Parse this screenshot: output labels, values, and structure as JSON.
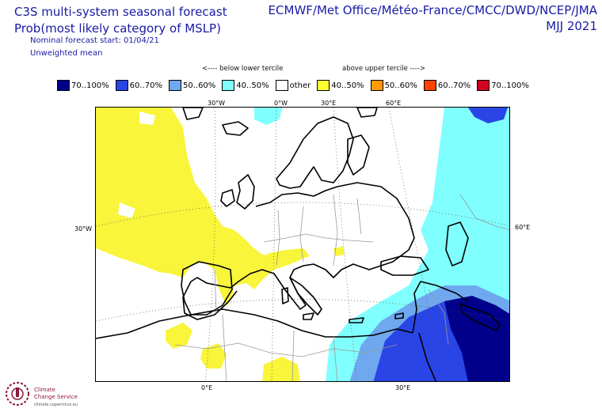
{
  "header": {
    "title_line1": "C3S multi-system seasonal forecast",
    "title_line2": "Prob(most likely category of MSLP)",
    "nominal_start": "Nominal forecast start: 01/04/21",
    "mean_type": "Unweighted mean",
    "centres": "ECMWF/Met Office/Météo-France/CMCC/DWD/NCEP/JMA",
    "season": "MJJ 2021"
  },
  "legend": {
    "below_label": "<---- below lower tercile",
    "above_label": "above upper tercile ---->",
    "items": [
      {
        "label": "70..100%",
        "color": "#00008b"
      },
      {
        "label": "60..70%",
        "color": "#2a45e6"
      },
      {
        "label": "50..60%",
        "color": "#6fa8ee"
      },
      {
        "label": "40..50%",
        "color": "#80ffff"
      },
      {
        "label": "other",
        "color": "#ffffff"
      },
      {
        "label": "40..50%",
        "color": "#ffff33"
      },
      {
        "label": "50..60%",
        "color": "#ff9a00"
      },
      {
        "label": "60..70%",
        "color": "#ff4400"
      },
      {
        "label": "70..100%",
        "color": "#d00020"
      }
    ]
  },
  "map": {
    "coords": {
      "top": [
        "30°W",
        "0°W",
        "30°E",
        "60°E"
      ],
      "left": "30°W",
      "right": "60°E",
      "bottom": [
        "0°E",
        "30°E"
      ]
    },
    "colors": {
      "above_40_50": "#f8f53a",
      "below_40_50": "#80ffff",
      "below_50_60": "#6fa8ee",
      "below_60_70": "#2a45e6",
      "below_70_100": "#00008b",
      "coast": "#000000",
      "borders": "#999999"
    }
  },
  "logo": {
    "line1": "Climate",
    "line2": "Change Service",
    "line3": "climate.copernicus.eu"
  }
}
